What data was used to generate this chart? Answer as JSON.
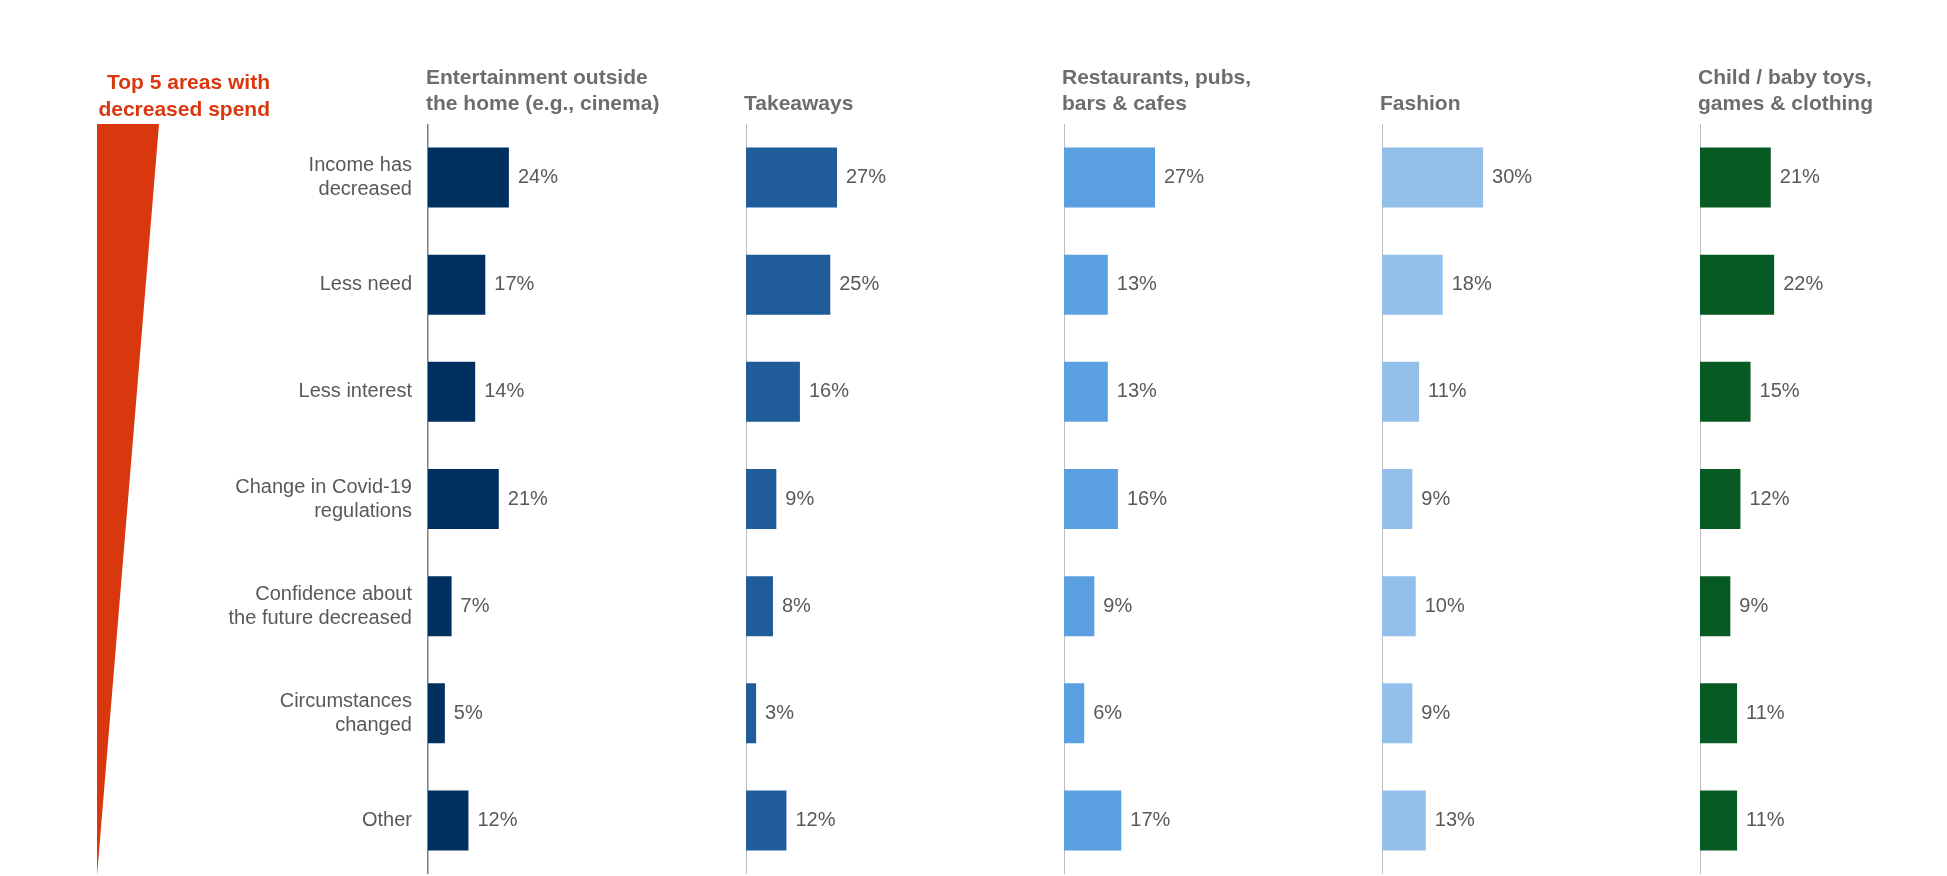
{
  "chart_data": [
    {
      "type": "bar",
      "orientation": "horizontal",
      "title": "Entertainment outside the home (e.g., cinema)",
      "categories": [
        "Income has decreased",
        "Less need",
        "Less interest",
        "Change in Covid-19 regulations",
        "Confidence about the future decreased",
        "Circumstances changed",
        "Other"
      ],
      "values": [
        24,
        17,
        14,
        21,
        7,
        5,
        12
      ],
      "value_labels": [
        "24%",
        "17%",
        "14%",
        "21%",
        "7%",
        "5%",
        "12%"
      ],
      "color": "#00305f",
      "annotations": [
        "Top 5 areas with decreased spend"
      ]
    },
    {
      "type": "bar",
      "orientation": "horizontal",
      "title": "Takeaways",
      "categories": [
        null,
        null,
        null,
        null,
        null,
        null,
        null
      ],
      "values": [
        27,
        25,
        16,
        9,
        8,
        3,
        12
      ],
      "value_labels": [
        "27%",
        "25%",
        "16%",
        "9%",
        "8%",
        "3%",
        "12%"
      ],
      "color": "#1f5c99"
    },
    {
      "type": "bar",
      "orientation": "horizontal",
      "title": "Restaurants, pubs, bars & cafes",
      "categories": [
        null,
        null,
        null,
        null,
        null,
        null,
        null
      ],
      "values": [
        27,
        13,
        13,
        16,
        9,
        6,
        17
      ],
      "value_labels": [
        "27%",
        "13%",
        "13%",
        "16%",
        "9%",
        "6%",
        "17%"
      ],
      "color": "#5aa0e0"
    },
    {
      "type": "bar",
      "orientation": "horizontal",
      "title": "Fashion",
      "categories": [
        null,
        null,
        null,
        null,
        null,
        null,
        null
      ],
      "values": [
        30,
        18,
        11,
        9,
        10,
        9,
        13
      ],
      "value_labels": [
        "30%",
        "18%",
        "11%",
        "9%",
        "10%",
        "9%",
        "13%"
      ],
      "color": "#92c0eb"
    },
    {
      "type": "bar",
      "orientation": "horizontal",
      "title": "Child / baby toys, games & clothing",
      "categories": [
        null,
        null,
        null,
        null,
        null,
        null,
        null
      ],
      "values": [
        21,
        22,
        15,
        12,
        9,
        11,
        11
      ],
      "value_labels": [
        "21%",
        "22%",
        "15%",
        "12%",
        "9%",
        "11%",
        "11%"
      ],
      "color": "#085a24"
    }
  ]
}
